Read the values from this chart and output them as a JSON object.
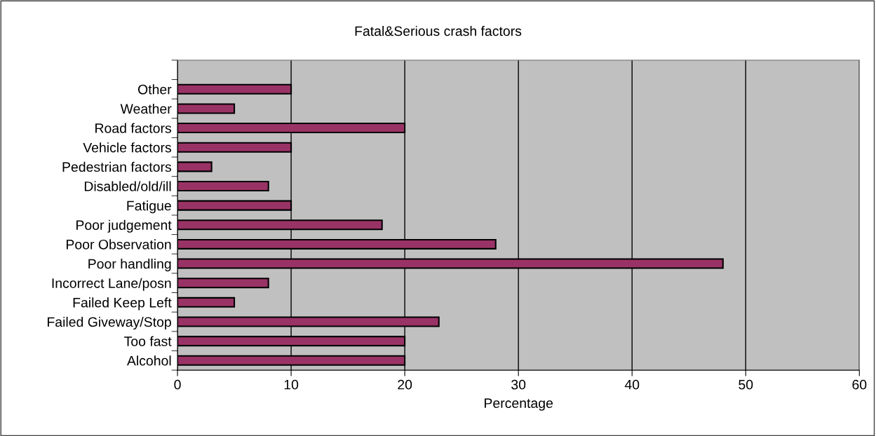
{
  "chart_data": {
    "type": "bar",
    "orientation": "horizontal",
    "title": "Fatal&Serious crash factors",
    "xlabel": "Percentage",
    "categories": [
      "Other",
      "Weather",
      "Road factors",
      "Vehicle factors",
      "Pedestrian factors",
      "Disabled/old/ill",
      "Fatigue",
      "Poor judgement",
      "Poor Observation",
      "Poor handling",
      "Incorrect Lane/posn",
      "Failed Keep Left",
      "Failed Giveway/Stop",
      "Too fast",
      "Alcohol"
    ],
    "values": [
      10,
      5,
      20,
      10,
      3,
      8,
      10,
      18,
      28,
      48,
      8,
      5,
      23,
      20,
      20
    ],
    "color": "#993366",
    "xlim": [
      0,
      60
    ],
    "xticks": [
      0,
      10,
      20,
      30,
      40,
      50,
      60
    ],
    "grid": "x",
    "legend": false
  }
}
